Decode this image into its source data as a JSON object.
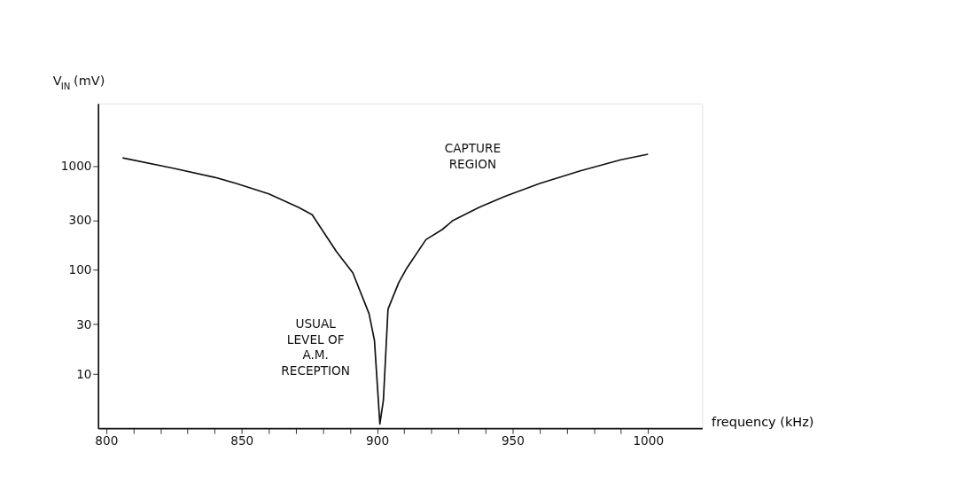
{
  "chart_data": {
    "type": "line",
    "ylabel": "V$_{IN}$ (mV)",
    "xlabel": "frequency (kHz)",
    "log": "y",
    "grid": false,
    "marker": "none",
    "line_style": "solid",
    "annotations": [
      "CAPTURE REGION",
      "USUAL LEVEL OF A.M. RECEPTION"
    ],
    "xlim": [
      797,
      1020
    ],
    "xticks": [
      800,
      {
        "value": 810,
        "label": null
      },
      {
        "value": 820,
        "label": null
      },
      {
        "value": 830,
        "label": null
      },
      {
        "value": 840,
        "label": null
      },
      850,
      {
        "value": 860,
        "label": null
      },
      {
        "value": 870,
        "label": null
      },
      {
        "value": 880,
        "label": null
      },
      {
        "value": 890,
        "label": null
      },
      900,
      {
        "value": 910,
        "label": null
      },
      {
        "value": 920,
        "label": null
      },
      {
        "value": 930,
        "label": null
      },
      {
        "value": 940,
        "label": null
      },
      950,
      {
        "value": 960,
        "label": null
      },
      {
        "value": 970,
        "label": null
      },
      {
        "value": 980,
        "label": null
      },
      {
        "value": 990,
        "label": null
      },
      1000
    ],
    "ylim": [
      3,
      4000
    ],
    "yticks": [
      10,
      30,
      100,
      300,
      1000
    ],
    "series": [
      {
        "color": "#111111",
        "x": [
          806,
          825,
          840,
          848,
          860,
          871,
          876,
          885,
          891,
          897,
          899,
          901,
          902.3,
          904,
          906.5,
          908,
          911,
          918,
          924,
          928,
          937.6,
          947,
          960,
          975,
          990,
          1000
        ],
        "values": [
          1200,
          950,
          780,
          680,
          540,
          400,
          340,
          150,
          94,
          38,
          21,
          3.3,
          5.6,
          42,
          61,
          76,
          105,
          196,
          245,
          300,
          400,
          510,
          680,
          900,
          1150,
          1300
        ]
      }
    ]
  }
}
